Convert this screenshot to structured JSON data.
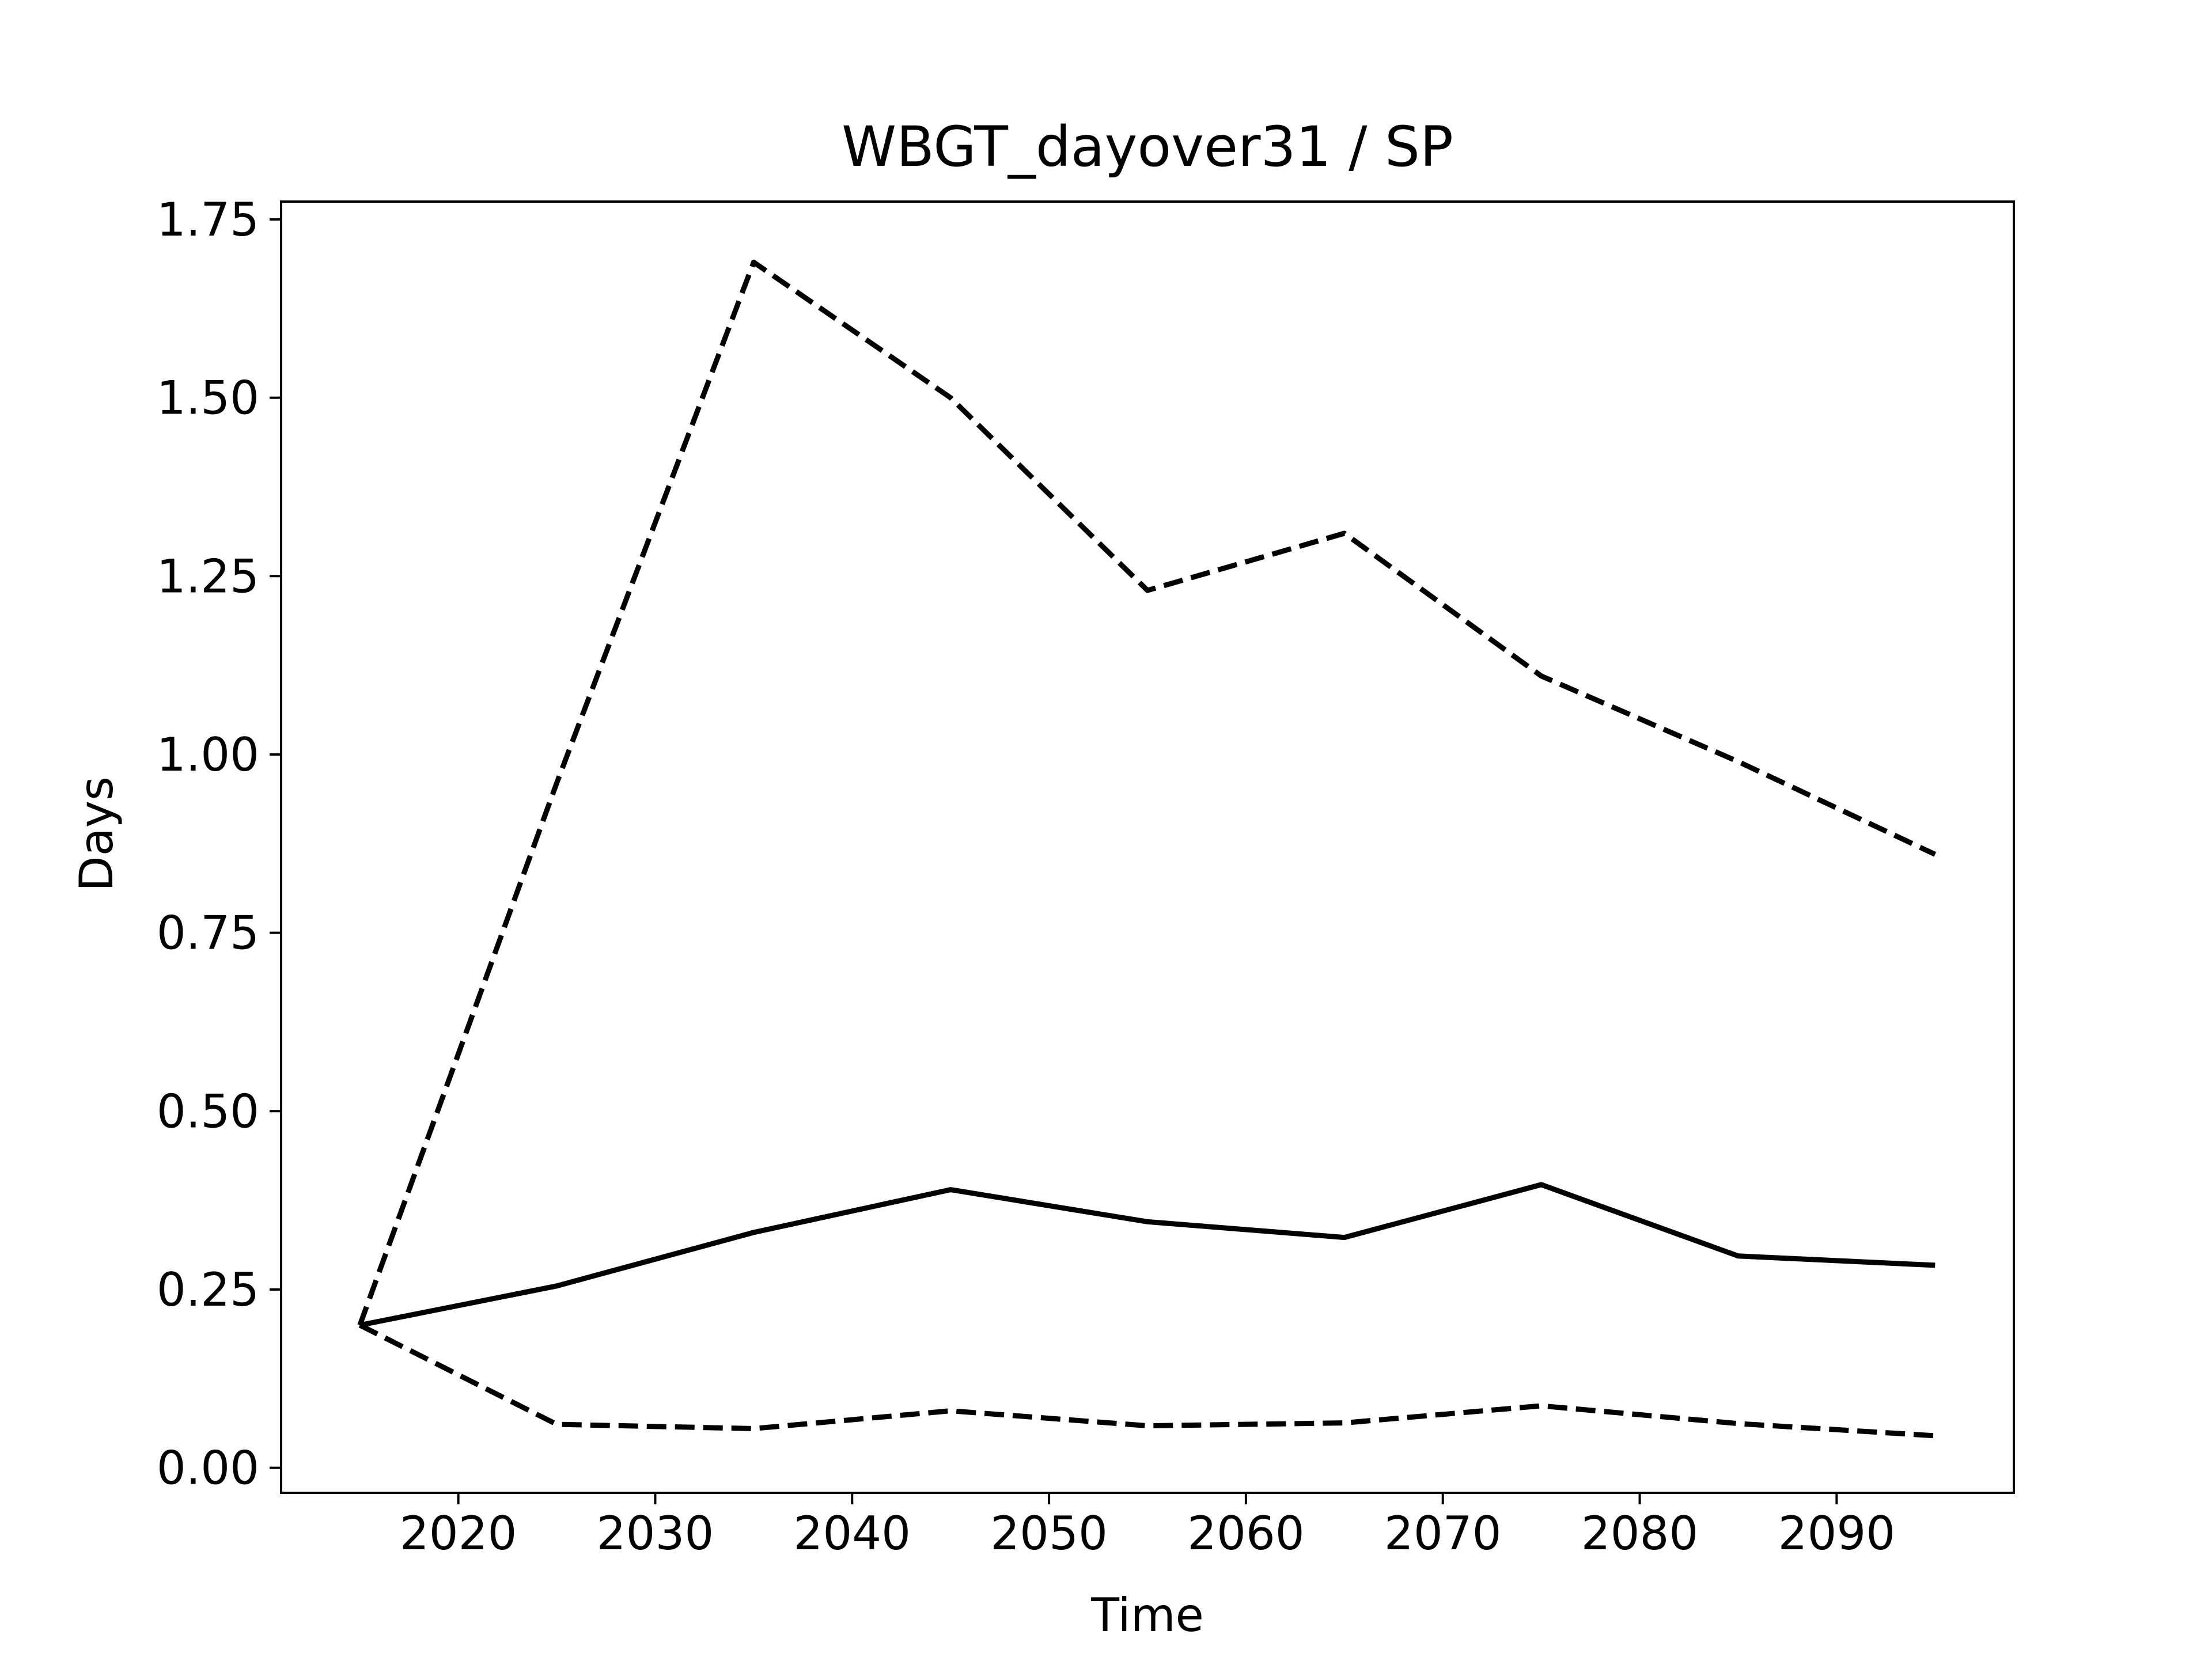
{
  "chart_data": {
    "type": "line",
    "title": "WBGT_dayover31 / SP",
    "xlabel": "Time",
    "ylabel": "Days",
    "xlim": [
      2011,
      2099
    ],
    "ylim": [
      -0.035,
      1.775
    ],
    "xticks": [
      2020,
      2030,
      2040,
      2050,
      2060,
      2070,
      2080,
      2090
    ],
    "xtick_labels": [
      "2020",
      "2030",
      "2040",
      "2050",
      "2060",
      "2070",
      "2080",
      "2090"
    ],
    "yticks": [
      0.0,
      0.25,
      0.5,
      0.75,
      1.0,
      1.25,
      1.5,
      1.75
    ],
    "ytick_labels": [
      "0.00",
      "0.25",
      "0.50",
      "0.75",
      "1.00",
      "1.25",
      "1.50",
      "1.75"
    ],
    "grid": false,
    "x": [
      2015,
      2025,
      2035,
      2045,
      2055,
      2065,
      2075,
      2085,
      2095
    ],
    "series": [
      {
        "style": "dashed",
        "color": "#000000",
        "values": [
          0.2,
          0.96,
          1.69,
          1.5,
          1.23,
          1.31,
          1.11,
          0.99,
          0.86
        ]
      },
      {
        "style": "solid",
        "color": "#000000",
        "values": [
          0.2,
          0.255,
          0.33,
          0.39,
          0.345,
          0.323,
          0.397,
          0.297,
          0.284
        ]
      },
      {
        "style": "dashed",
        "color": "#000000",
        "values": [
          0.2,
          0.061,
          0.055,
          0.08,
          0.059,
          0.063,
          0.087,
          0.062,
          0.045
        ]
      }
    ]
  }
}
